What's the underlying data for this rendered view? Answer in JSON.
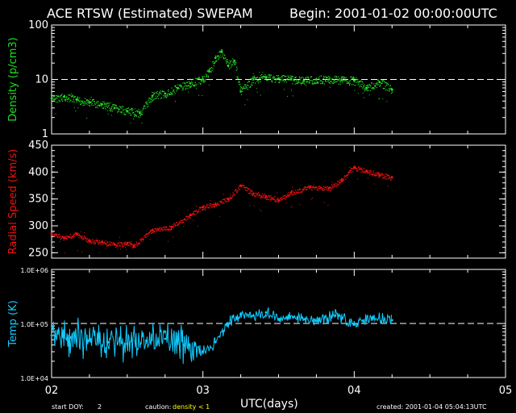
{
  "header": {
    "title": "ACE RTSW (Estimated) SWEPAM",
    "begin": "Begin: 2001-01-02 00:00:00UTC"
  },
  "footer": {
    "start_doy_label": "start DOY:",
    "start_doy_value": "2",
    "caution_label": "caution:",
    "caution_value": "density < 1",
    "created": "created: 2001-01-04 05:04:13UTC"
  },
  "colors": {
    "background": "#000000",
    "axes": "#ffffff",
    "density": "#22dd22",
    "speed": "#ee1111",
    "temp": "#11ccff",
    "caution": "#ffff00"
  },
  "chart_data": [
    {
      "type": "scatter",
      "ylabel": "Density (p/cm3)",
      "yscale": "log",
      "ylim": [
        1,
        100
      ],
      "yticks": [
        "1",
        "10",
        "100"
      ],
      "reference_line": 10,
      "xlabel": "UTC(days)",
      "xlim": [
        "2001-01-02",
        "2001-01-05"
      ],
      "xtick_labels": [
        "02",
        "03",
        "04",
        "05"
      ],
      "series": [
        {
          "x": [
            "2001-01-02 00:00",
            "2001-01-02 02:00",
            "2001-01-02 04:00",
            "2001-01-02 06:00",
            "2001-01-02 08:00",
            "2001-01-02 10:00",
            "2001-01-02 12:00",
            "2001-01-02 14:00",
            "2001-01-02 16:00",
            "2001-01-02 18:00",
            "2001-01-02 20:00",
            "2001-01-02 22:00",
            "2001-01-03 00:00",
            "2001-01-03 01:00",
            "2001-01-03 02:00",
            "2001-01-03 03:00",
            "2001-01-03 04:00",
            "2001-01-03 05:00",
            "2001-01-03 06:00",
            "2001-01-03 08:00",
            "2001-01-03 10:00",
            "2001-01-03 12:00",
            "2001-01-03 14:00",
            "2001-01-03 16:00",
            "2001-01-03 18:00",
            "2001-01-03 20:00",
            "2001-01-03 22:00",
            "2001-01-04 00:00",
            "2001-01-04 02:00",
            "2001-01-04 04:00",
            "2001-01-04 06:00"
          ],
          "values": [
            4.5,
            4.8,
            4.2,
            3.8,
            3.5,
            3.0,
            2.6,
            2.4,
            5.0,
            5.5,
            7.0,
            8.5,
            10,
            14,
            25,
            32,
            18,
            22,
            6,
            10,
            11,
            10.5,
            10,
            9.5,
            10,
            10,
            9.8,
            9.5,
            7,
            9,
            6.5
          ]
        }
      ]
    },
    {
      "type": "scatter",
      "ylabel": "Radial Speed (km/s)",
      "ylim": [
        240,
        450
      ],
      "yticks": [
        250,
        300,
        350,
        400,
        450
      ],
      "xlabel": "UTC(days)",
      "xlim": [
        "2001-01-02",
        "2001-01-05"
      ],
      "xtick_labels": [
        "02",
        "03",
        "04",
        "05"
      ],
      "series": [
        {
          "x": [
            "2001-01-02 00:00",
            "2001-01-02 02:00",
            "2001-01-02 04:00",
            "2001-01-02 06:00",
            "2001-01-02 08:00",
            "2001-01-02 10:00",
            "2001-01-02 12:00",
            "2001-01-02 13:00",
            "2001-01-02 16:00",
            "2001-01-02 19:00",
            "2001-01-02 22:00",
            "2001-01-03 00:00",
            "2001-01-03 02:00",
            "2001-01-03 04:00",
            "2001-01-03 06:00",
            "2001-01-03 08:00",
            "2001-01-03 10:00",
            "2001-01-03 12:00",
            "2001-01-03 14:00",
            "2001-01-03 17:00",
            "2001-01-03 20:00",
            "2001-01-03 22:00",
            "2001-01-04 00:00",
            "2001-01-04 02:00",
            "2001-01-04 04:00",
            "2001-01-04 06:00"
          ],
          "values": [
            285,
            278,
            285,
            272,
            270,
            265,
            268,
            262,
            292,
            298,
            320,
            335,
            340,
            350,
            375,
            360,
            355,
            348,
            362,
            372,
            370,
            385,
            408,
            402,
            395,
            390
          ]
        }
      ]
    },
    {
      "type": "line",
      "ylabel": "Temp (K)",
      "yscale": "log",
      "ylim": [
        10000,
        1000000
      ],
      "yticks": [
        "1.0E+04",
        "1.0E+05",
        "1.0E+06"
      ],
      "reference_line": 100000,
      "xlabel": "UTC(days)",
      "xlim": [
        "2001-01-02",
        "2001-01-05"
      ],
      "xtick_labels": [
        "02",
        "03",
        "04",
        "05"
      ],
      "series": [
        {
          "x": [
            "2001-01-02 00:00",
            "2001-01-02 03:00",
            "2001-01-02 06:00",
            "2001-01-02 09:00",
            "2001-01-02 12:00",
            "2001-01-02 15:00",
            "2001-01-02 18:00",
            "2001-01-02 21:00",
            "2001-01-03 00:00",
            "2001-01-03 02:00",
            "2001-01-03 04:00",
            "2001-01-03 06:00",
            "2001-01-03 08:00",
            "2001-01-03 10:00",
            "2001-01-03 12:00",
            "2001-01-03 15:00",
            "2001-01-03 18:00",
            "2001-01-03 21:00",
            "2001-01-04 00:00",
            "2001-01-04 03:00",
            "2001-01-04 06:00"
          ],
          "values": [
            60000,
            55000,
            50000,
            45000,
            42000,
            48000,
            52000,
            40000,
            30000,
            45000,
            100000,
            150000,
            140000,
            160000,
            120000,
            130000,
            110000,
            140000,
            95000,
            130000,
            115000
          ]
        }
      ]
    }
  ]
}
